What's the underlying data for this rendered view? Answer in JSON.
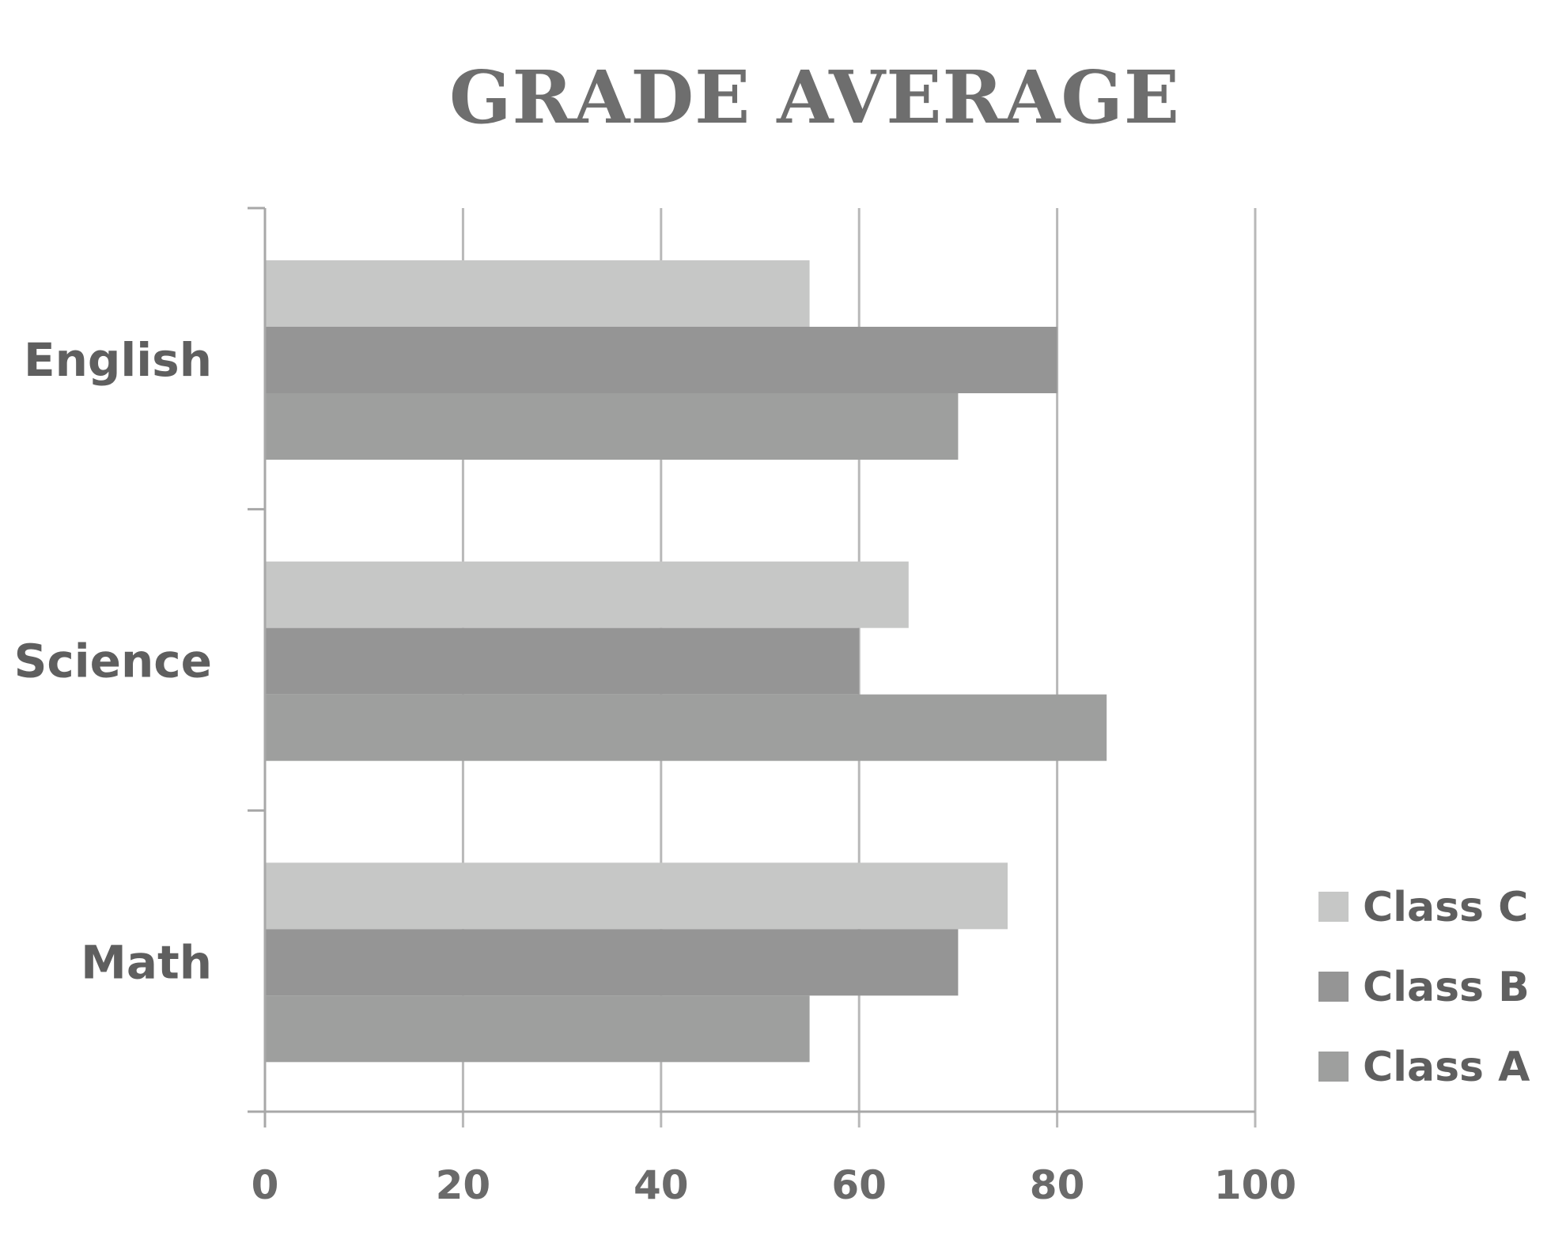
{
  "chart_data": {
    "type": "bar",
    "orientation": "horizontal",
    "title": "GRADE AVERAGE",
    "xlabel": "",
    "ylabel": "",
    "categories": [
      "English",
      "Science",
      "Math"
    ],
    "series": [
      {
        "name": "Class C",
        "values": [
          55,
          65,
          75
        ],
        "color": "#c6c7c6"
      },
      {
        "name": "Class B",
        "values": [
          80,
          60,
          70
        ],
        "color": "#959595"
      },
      {
        "name": "Class A",
        "values": [
          70,
          85,
          55
        ],
        "color": "#9e9f9e"
      }
    ],
    "xlim": [
      0,
      100
    ],
    "xticks": [
      "0",
      "20",
      "40",
      "60",
      "80",
      "100"
    ],
    "grid": true,
    "legend_position": "bottom-right"
  }
}
